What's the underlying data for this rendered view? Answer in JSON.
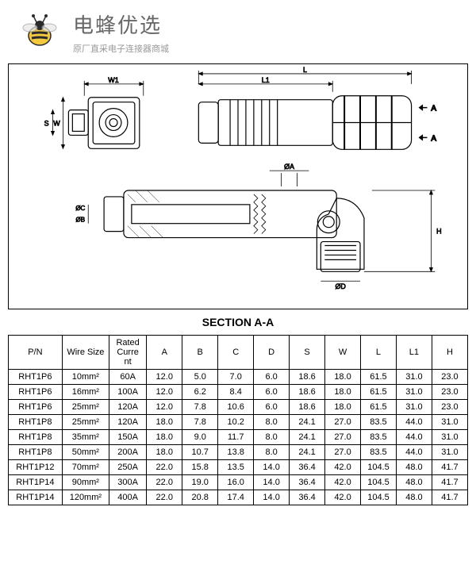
{
  "header": {
    "title": "电蜂优选",
    "subtitle": "原厂直采电子连接器商城"
  },
  "section_label": "SECTION   A-A",
  "dimension_labels": {
    "L": "L",
    "L1": "L1",
    "W1": "W1",
    "W": "W",
    "S": "S",
    "A": "A",
    "phiA": "ØA",
    "phiB": "ØB",
    "phiC": "ØC",
    "phiD": "ØD",
    "H": "H"
  },
  "table": {
    "columns": [
      "P/N",
      "Wire Size",
      "Rated Current",
      "A",
      "B",
      "C",
      "D",
      "S",
      "W",
      "L",
      "L1",
      "H"
    ],
    "rows": [
      [
        "RHT1P6",
        "10mm²",
        "60A",
        "12.0",
        "5.0",
        "7.0",
        "6.0",
        "18.6",
        "18.0",
        "61.5",
        "31.0",
        "23.0"
      ],
      [
        "RHT1P6",
        "16mm²",
        "100A",
        "12.0",
        "6.2",
        "8.4",
        "6.0",
        "18.6",
        "18.0",
        "61.5",
        "31.0",
        "23.0"
      ],
      [
        "RHT1P6",
        "25mm²",
        "120A",
        "12.0",
        "7.8",
        "10.6",
        "6.0",
        "18.6",
        "18.0",
        "61.5",
        "31.0",
        "23.0"
      ],
      [
        "RHT1P8",
        "25mm²",
        "120A",
        "18.0",
        "7.8",
        "10.2",
        "8.0",
        "24.1",
        "27.0",
        "83.5",
        "44.0",
        "31.0"
      ],
      [
        "RHT1P8",
        "35mm²",
        "150A",
        "18.0",
        "9.0",
        "11.7",
        "8.0",
        "24.1",
        "27.0",
        "83.5",
        "44.0",
        "31.0"
      ],
      [
        "RHT1P8",
        "50mm²",
        "200A",
        "18.0",
        "10.7",
        "13.8",
        "8.0",
        "24.1",
        "27.0",
        "83.5",
        "44.0",
        "31.0"
      ],
      [
        "RHT1P12",
        "70mm²",
        "250A",
        "22.0",
        "15.8",
        "13.5",
        "14.0",
        "36.4",
        "42.0",
        "104.5",
        "48.0",
        "41.7"
      ],
      [
        "RHT1P14",
        "90mm²",
        "300A",
        "22.0",
        "19.0",
        "16.0",
        "14.0",
        "36.4",
        "42.0",
        "104.5",
        "48.0",
        "41.7"
      ],
      [
        "RHT1P14",
        "120mm²",
        "400A",
        "22.0",
        "20.8",
        "17.4",
        "14.0",
        "36.4",
        "42.0",
        "104.5",
        "48.0",
        "41.7"
      ]
    ]
  },
  "styling": {
    "border_color": "#000000",
    "background": "#ffffff",
    "text_color": "#000000",
    "brand_color": "#666666",
    "subtitle_color": "#999999",
    "bee_yellow": "#f5c842",
    "bee_black": "#2b2b2b",
    "table_fontsize": 11,
    "brand_fontsize": 26
  }
}
